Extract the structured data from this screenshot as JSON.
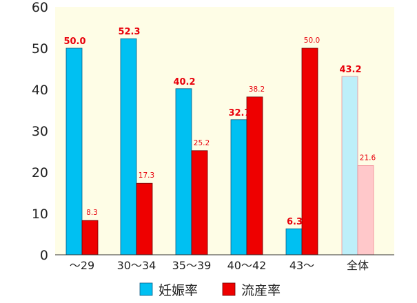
{
  "chart_data": {
    "type": "bar",
    "categories": [
      "～29",
      "30～34",
      "35～39",
      "40～42",
      "43～",
      "全体"
    ],
    "series": [
      {
        "name": "妊娠率",
        "values": [
          50.0,
          52.3,
          40.2,
          32.7,
          6.3,
          43.2
        ]
      },
      {
        "name": "流産率",
        "values": [
          8.3,
          17.3,
          25.2,
          38.2,
          50.0,
          21.6
        ]
      }
    ],
    "value_labels": {
      "pregnancy": [
        "50.0",
        "52.3",
        "40.2",
        "32.7",
        "6.3",
        "43.2"
      ],
      "miscarriage": [
        "8.3",
        "17.3",
        "25.2",
        "38.2",
        "50.0",
        "21.6"
      ]
    },
    "ylim": [
      0,
      60
    ],
    "yticks": [
      "0",
      "10",
      "20",
      "30",
      "40",
      "50",
      "60"
    ],
    "grid": false,
    "legend_position": "bottom-center",
    "colors": {
      "pregnancy": "#00c0f2",
      "miscarriage": "#ee0000",
      "pregnancy_total": "#bdeff9",
      "miscarriage_total": "#ffc8ca",
      "plot_background": "#fefde6",
      "value_label": "#e8000b"
    }
  }
}
